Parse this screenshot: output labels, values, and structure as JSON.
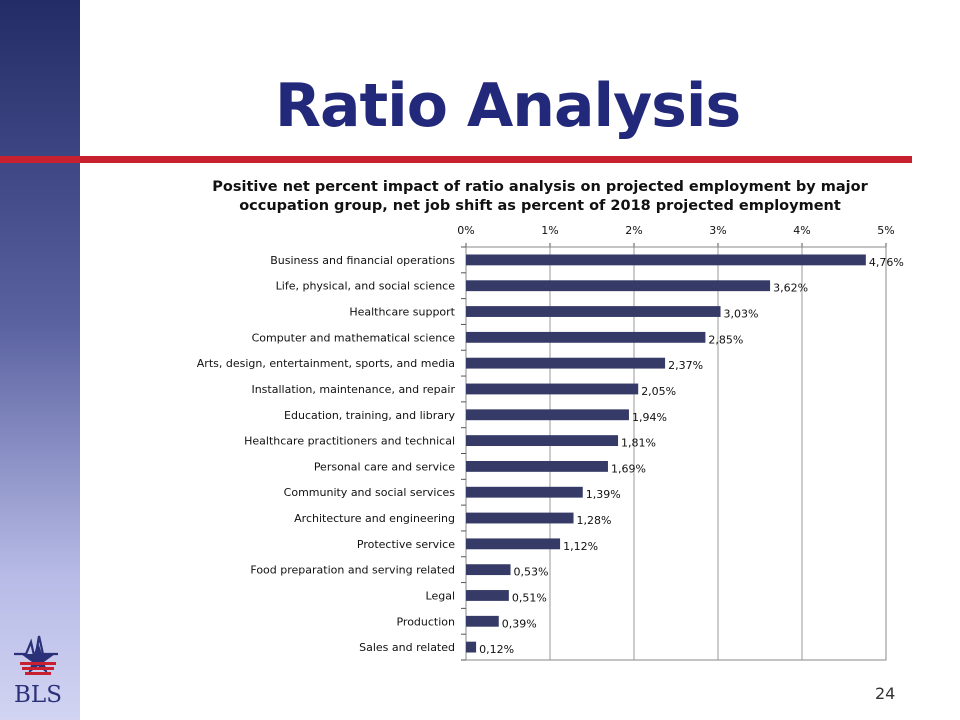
{
  "slide": {
    "title": "Ratio Analysis",
    "page_number": "24",
    "logo_text": "BLS"
  },
  "colors": {
    "title": "#22287a",
    "rule": "#c8202f",
    "bar": "#363a66"
  },
  "chart_data": {
    "type": "bar",
    "orientation": "horizontal",
    "title": "Positive net percent impact of ratio analysis on projected employment by major occupation group, net job shift as percent of 2018 projected employment",
    "xlabel": "",
    "ylabel": "",
    "xlim": [
      0,
      5
    ],
    "x_ticks": [
      "0%",
      "1%",
      "2%",
      "3%",
      "4%",
      "5%"
    ],
    "x_axis_position": "top",
    "grid": "vertical",
    "legend": "none",
    "categories": [
      "Business and financial operations",
      "Life, physical, and social science",
      "Healthcare support",
      "Computer and mathematical science",
      "Arts, design, entertainment, sports, and media",
      "Installation, maintenance, and repair",
      "Education, training, and library",
      "Healthcare practitioners and technical",
      "Personal care and service",
      "Community and social services",
      "Architecture and engineering",
      "Protective service",
      "Food preparation and serving related",
      "Legal",
      "Production",
      "Sales and related"
    ],
    "values": [
      4.76,
      3.62,
      3.03,
      2.85,
      2.37,
      2.05,
      1.94,
      1.81,
      1.69,
      1.39,
      1.28,
      1.12,
      0.53,
      0.51,
      0.39,
      0.12
    ],
    "value_labels": [
      "4,76%",
      "3,62%",
      "3,03%",
      "2,85%",
      "2,37%",
      "2,05%",
      "1,94%",
      "1,81%",
      "1,69%",
      "1,39%",
      "1,28%",
      "1,12%",
      "0,53%",
      "0,51%",
      "0,39%",
      "0,12%"
    ]
  }
}
